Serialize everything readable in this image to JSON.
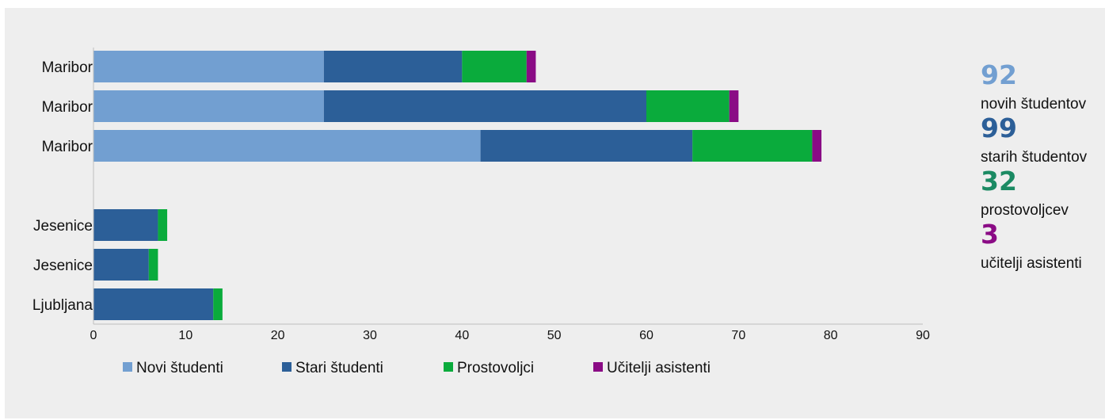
{
  "chart_data": {
    "type": "bar",
    "orientation": "horizontal",
    "stacked": true,
    "categories": [
      "Maribor",
      "Maribor",
      "Maribor",
      "Jesenice",
      "Jesenice",
      "Ljubljana"
    ],
    "series": [
      {
        "name": "Novi študenti",
        "color": "#729fd1",
        "values": [
          25,
          25,
          42,
          0,
          0,
          0
        ]
      },
      {
        "name": "Stari študenti",
        "color": "#2c5f98",
        "values": [
          15,
          35,
          23,
          7,
          6,
          13
        ]
      },
      {
        "name": "Prostovoljci",
        "color": "#0aab3c",
        "values": [
          7,
          9,
          13,
          1,
          1,
          1
        ]
      },
      {
        "name": "Učitelji asistenti",
        "color": "#8a0b85",
        "values": [
          1,
          1,
          1,
          0,
          0,
          0
        ]
      }
    ],
    "xlim": [
      0,
      90
    ],
    "xticks": [
      0,
      10,
      20,
      30,
      40,
      50,
      60,
      70,
      80,
      90
    ],
    "legend_position": "bottom"
  },
  "stats": [
    {
      "value": "92",
      "label": "novih študentov",
      "color": "#729fd1"
    },
    {
      "value": "99",
      "label": "starih študentov",
      "color": "#2c5f98"
    },
    {
      "value": "32",
      "label": "prostovoljcev",
      "color": "#1b8a63"
    },
    {
      "value": "3",
      "label": "učitelji asistenti",
      "color": "#8a0b85"
    }
  ]
}
